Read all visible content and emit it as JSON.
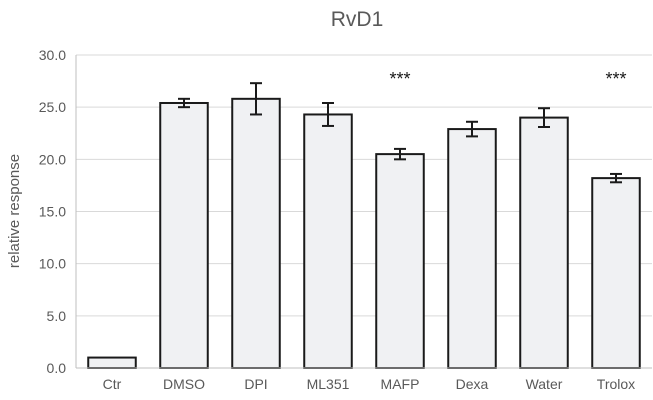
{
  "chart_data": {
    "type": "bar",
    "title": "RvD1",
    "xlabel": "",
    "ylabel": "relative response",
    "categories": [
      "Ctr",
      "DMSO",
      "DPI",
      "ML351",
      "MAFP",
      "Dexa",
      "Water",
      "Trolox"
    ],
    "values": [
      1.0,
      25.4,
      25.8,
      24.3,
      20.5,
      22.9,
      24.0,
      18.2
    ],
    "errors": [
      0.0,
      0.4,
      1.5,
      1.1,
      0.5,
      0.7,
      0.9,
      0.4
    ],
    "annotations": [
      "",
      "",
      "",
      "",
      "***",
      "",
      "",
      "***"
    ],
    "ylim": [
      0,
      30
    ],
    "yticks": [
      0,
      5,
      10,
      15,
      20,
      25,
      30
    ],
    "ytick_labels": [
      "0.0",
      "5.0",
      "10.0",
      "15.0",
      "20.0",
      "25.0",
      "30.0"
    ],
    "grid": true,
    "colors": {
      "bar_fill": "#f0f1f3",
      "bar_stroke": "#1a1a1a",
      "grid": "#d9d9d9",
      "axis_text": "#595959",
      "title": "#595959"
    }
  }
}
